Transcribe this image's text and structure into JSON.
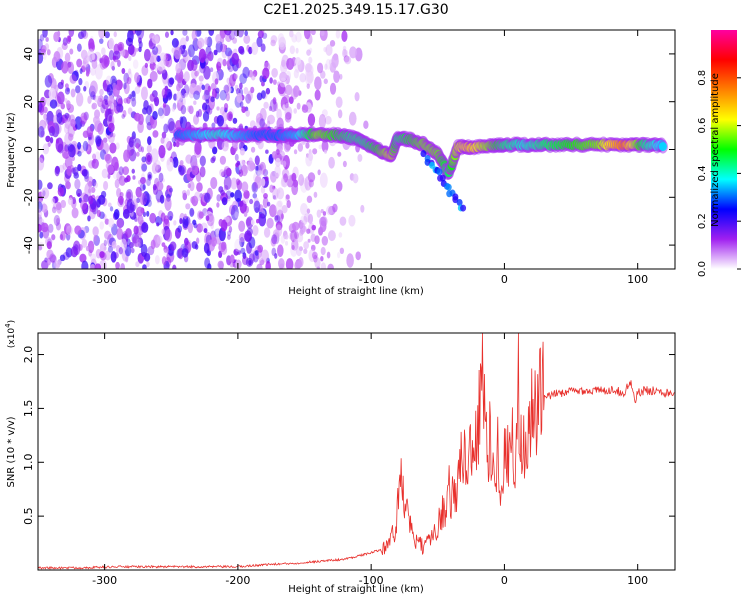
{
  "title": "C2E1.2025.349.15.17.G30",
  "colors": {
    "signal": "#8a2be2",
    "snr_line": "#e8302c",
    "axis": "#000000"
  },
  "chart_data": [
    {
      "type": "heatmap",
      "xlabel": "Height of straight line (km)",
      "ylabel": "Frequency (Hz)",
      "xlim": [
        -350,
        128
      ],
      "ylim": [
        -50,
        50
      ],
      "xticks": [
        -300,
        -200,
        -100,
        0,
        100
      ],
      "yticks": [
        -40,
        -20,
        0,
        20,
        40
      ],
      "colorbar": {
        "label": "Normalized spectral amplitude",
        "range": [
          0,
          1
        ],
        "ticks": [
          "0.0",
          "0.2",
          "0.4",
          "0.6",
          "0.8"
        ],
        "tick_values": [
          0,
          0.2,
          0.4,
          0.6,
          0.8
        ],
        "colormap": [
          "#ffffff",
          "#a020f0",
          "#0000ff",
          "#00ffff",
          "#00ff00",
          "#ffff00",
          "#ff8000",
          "#ff0000",
          "#ff00a0"
        ]
      },
      "ridge": [
        {
          "x": -245,
          "y": 6,
          "a": 0.3
        },
        {
          "x": -230,
          "y": 6,
          "a": 0.35
        },
        {
          "x": -215,
          "y": 6.5,
          "a": 0.4
        },
        {
          "x": -200,
          "y": 6,
          "a": 0.35
        },
        {
          "x": -185,
          "y": 6,
          "a": 0.3
        },
        {
          "x": -170,
          "y": 6,
          "a": 0.3
        },
        {
          "x": -155,
          "y": 6,
          "a": 0.35
        },
        {
          "x": -140,
          "y": 6.5,
          "a": 0.55
        },
        {
          "x": -125,
          "y": 6,
          "a": 0.5
        },
        {
          "x": -115,
          "y": 5,
          "a": 0.45
        },
        {
          "x": -105,
          "y": 3,
          "a": 0.45
        },
        {
          "x": -95,
          "y": 0,
          "a": 0.5
        },
        {
          "x": -85,
          "y": -3,
          "a": 0.6
        },
        {
          "x": -80,
          "y": 5,
          "a": 0.45
        },
        {
          "x": -70,
          "y": 4,
          "a": 0.5
        },
        {
          "x": -60,
          "y": 2,
          "a": 0.55
        },
        {
          "x": -50,
          "y": -2,
          "a": 0.55
        },
        {
          "x": -42,
          "y": -10,
          "a": 0.45
        },
        {
          "x": -35,
          "y": 1,
          "a": 0.6
        },
        {
          "x": -25,
          "y": 1,
          "a": 0.65
        },
        {
          "x": -10,
          "y": 1.5,
          "a": 0.55
        },
        {
          "x": 0,
          "y": 2,
          "a": 0.45
        },
        {
          "x": 15,
          "y": 2,
          "a": 0.4
        },
        {
          "x": 30,
          "y": 2,
          "a": 0.45
        },
        {
          "x": 50,
          "y": 2,
          "a": 0.5
        },
        {
          "x": 70,
          "y": 2,
          "a": 0.55
        },
        {
          "x": 90,
          "y": 2,
          "a": 0.75
        },
        {
          "x": 105,
          "y": 2,
          "a": 0.45
        },
        {
          "x": 120,
          "y": 1.5,
          "a": 0.35
        }
      ]
    },
    {
      "type": "line",
      "xlabel": "Height of straight line (km)",
      "ylabel": "SNR (10 * v/v)",
      "y_multiplier": "(x10",
      "y_multiplier_exp": "4",
      "y_multiplier_close": ")",
      "xlim": [
        -350,
        128
      ],
      "ylim": [
        0,
        2.2
      ],
      "xticks": [
        -300,
        -200,
        -100,
        0,
        100
      ],
      "yticks": [
        0.5,
        1.0,
        1.5,
        2.0
      ],
      "ytick_labels": [
        "0.5",
        "1.0",
        "1.5",
        "2.0"
      ],
      "series": [
        {
          "name": "SNR",
          "x": [
            -350,
            -320,
            -290,
            -260,
            -230,
            -200,
            -180,
            -160,
            -140,
            -120,
            -110,
            -100,
            -95,
            -90,
            -85,
            -82,
            -80,
            -78,
            -75,
            -72,
            -70,
            -65,
            -60,
            -55,
            -50,
            -45,
            -42,
            -40,
            -38,
            -35,
            -32,
            -30,
            -28,
            -25,
            -22,
            -20,
            -18,
            -17,
            -16,
            -15,
            -13,
            -10,
            -8,
            -5,
            -3,
            0,
            3,
            5,
            8,
            10,
            12,
            15,
            18,
            20,
            23,
            25,
            28,
            30,
            35,
            40,
            45,
            50,
            55,
            60,
            65,
            70,
            75,
            80,
            85,
            90,
            95,
            98,
            100,
            102,
            105,
            110,
            115,
            120,
            128
          ],
          "values": [
            0.02,
            0.02,
            0.03,
            0.03,
            0.03,
            0.03,
            0.05,
            0.06,
            0.08,
            0.1,
            0.13,
            0.16,
            0.18,
            0.22,
            0.3,
            0.35,
            0.6,
            0.8,
            0.7,
            0.45,
            0.35,
            0.25,
            0.2,
            0.3,
            0.45,
            0.55,
            0.8,
            0.7,
            0.65,
            0.85,
            1.0,
            1.1,
            0.9,
            1.2,
            1.3,
            1.25,
            1.6,
            2.1,
            1.7,
            1.4,
            1.2,
            1.15,
            1.0,
            1.1,
            0.9,
            1.0,
            1.15,
            1.2,
            1.0,
            2.05,
            1.1,
            1.2,
            1.3,
            1.4,
            1.45,
            1.55,
            1.58,
            1.6,
            1.62,
            1.64,
            1.65,
            1.66,
            1.66,
            1.67,
            1.66,
            1.67,
            1.66,
            1.68,
            1.66,
            1.65,
            1.75,
            1.55,
            1.66,
            1.64,
            1.67,
            1.66,
            1.68,
            1.65,
            1.64
          ]
        }
      ]
    }
  ]
}
